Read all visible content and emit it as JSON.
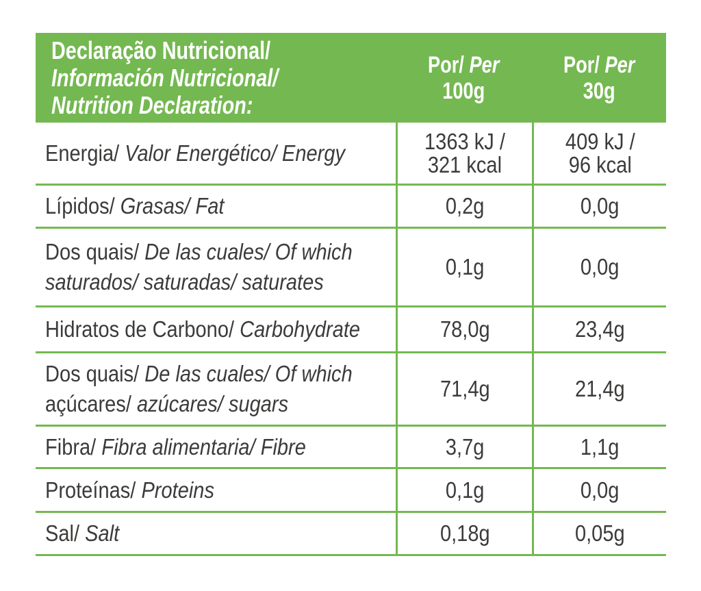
{
  "colors": {
    "accent_green": "#74b851",
    "text": "#3b3b3a",
    "header_text": "#ffffff"
  },
  "header": {
    "title_line1": "Declaração Nutricional/",
    "title_line2": "Información Nutricional/",
    "title_line3": "Nutrition Declaration:",
    "col_100g": {
      "per_regular": "Por/",
      "per_italic": "Per",
      "amount": "100g"
    },
    "col_30g": {
      "per_regular": "Por/",
      "per_italic": "Per",
      "amount": "30g"
    }
  },
  "rows": [
    {
      "name": "energy",
      "label_regular": "Energia/",
      "label_italic": "Valor Energético/ Energy",
      "per100_line1": "1363 kJ /",
      "per100_line2": "321 kcal",
      "per30_line1": "409 kJ /",
      "per30_line2": "96 kcal"
    },
    {
      "name": "fat",
      "label_regular": "Lípidos/",
      "label_italic": "Grasas/ Fat",
      "per100": "0,2g",
      "per30": "0,0g"
    },
    {
      "name": "saturates",
      "label_regular": "Dos quais/",
      "label_italic": "De las cuales/ Of which",
      "label2_regular": "",
      "label2_italic": "saturados/ saturadas/ saturates",
      "per100": "0,1g",
      "per30": "0,0g"
    },
    {
      "name": "carbohydrate",
      "label_regular": "Hidratos de Carbono/",
      "label_italic": "Carbohydrate",
      "per100": "78,0g",
      "per30": "23,4g"
    },
    {
      "name": "sugars",
      "label_regular": "Dos quais/",
      "label_italic": "De las cuales/ Of which",
      "label2_regular": "açúcares/",
      "label2_italic": "azúcares/ sugars",
      "per100": "71,4g",
      "per30": "21,4g"
    },
    {
      "name": "fibre",
      "label_regular": "Fibra/",
      "label_italic": "Fibra alimentaria/ Fibre",
      "per100": "3,7g",
      "per30": "1,1g"
    },
    {
      "name": "protein",
      "label_regular": "Proteínas/",
      "label_italic": "Proteins",
      "per100": "0,1g",
      "per30": "0,0g"
    },
    {
      "name": "salt",
      "label_regular": "Sal/",
      "label_italic": "Salt",
      "per100": "0,18g",
      "per30": "0,05g"
    }
  ]
}
